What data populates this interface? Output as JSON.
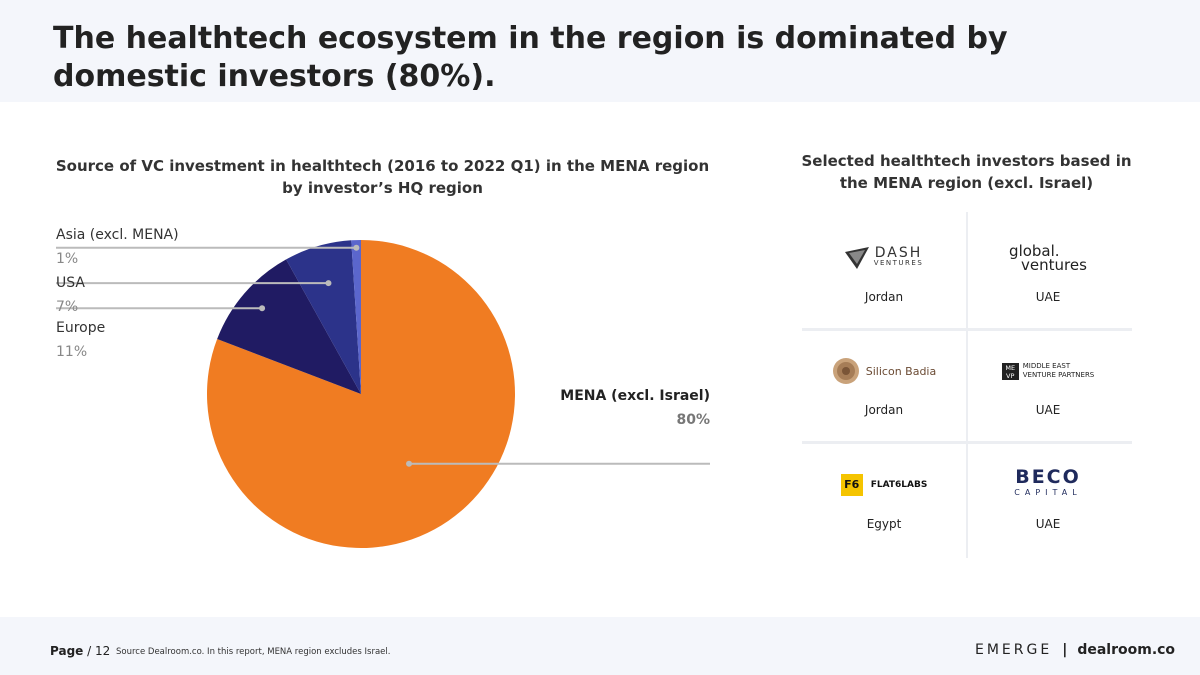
{
  "title": "The healthtech ecosystem in the region is dominated by domestic investors (80%).",
  "chart_data": {
    "type": "pie",
    "title": "Source of VC investment in healthtech (2016 to 2022 Q1) in the MENA region by investor’s HQ region",
    "slices": [
      {
        "label": "MENA (excl. Israel)",
        "value": 80,
        "display": "80%",
        "color": "#f07c22"
      },
      {
        "label": "Europe",
        "value": 11,
        "display": "11%",
        "color": "#201b63"
      },
      {
        "label": "USA",
        "value": 7,
        "display": "7%",
        "color": "#2c338a"
      },
      {
        "label": "Asia (excl. MENA)",
        "value": 1,
        "display": "1%",
        "color": "#5b66cc"
      }
    ]
  },
  "investors": {
    "title": "Selected healthtech investors based in the MENA region (excl. Israel)",
    "items": [
      {
        "logo_main": "DASH",
        "logo_sub": "VENTURES",
        "country": "Jordan"
      },
      {
        "logo_main": "global.",
        "logo_sub": "ventures",
        "country": "UAE"
      },
      {
        "logo_main": "Silicon Badia",
        "country": "Jordan"
      },
      {
        "logo_mark": "ME VP",
        "logo_main": "MIDDLE EAST",
        "logo_sub": "VENTURE PARTNERS",
        "country": "UAE"
      },
      {
        "logo_mark": "F6",
        "logo_main": "FLAT6LABS",
        "country": "Egypt"
      },
      {
        "logo_main": "BECO",
        "logo_sub": "CAPITAL",
        "country": "UAE"
      }
    ]
  },
  "footer": {
    "page_label": "Page",
    "page_number": "/ 12",
    "source": "Source Dealroom.co. In this report, MENA region excludes Israel.",
    "brand_1": "EMERGE",
    "separator": "|",
    "brand_2": "dealroom.co"
  }
}
